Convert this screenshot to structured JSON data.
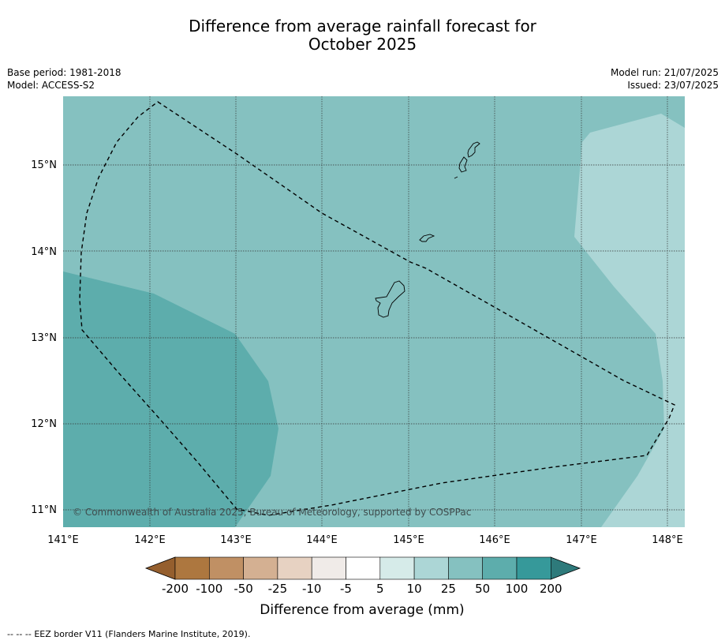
{
  "title": {
    "line1": "Difference from average rainfall forecast for",
    "line2": "October 2025"
  },
  "meta": {
    "base_period": "Base period: 1981-2018",
    "model": "Model: ACCESS-S2",
    "model_run": "Model run: 21/07/2025",
    "issued": "Issued: 23/07/2025"
  },
  "map": {
    "lon_labels": [
      "141°E",
      "142°E",
      "143°E",
      "144°E",
      "145°E",
      "146°E",
      "147°E",
      "148°E"
    ],
    "lat_labels": [
      "15°N",
      "14°N",
      "13°N",
      "12°N",
      "11°N"
    ],
    "copyright": "© Commonwealth of Australia 2025, Bureau of Meteorology, supported by COSPPac",
    "colors": {
      "class_25_50": "#85c1c0",
      "class_50_100": "#5dadac",
      "class_10_25": "#acd6d6",
      "coastline": "#000000",
      "eez_border": "#000000"
    }
  },
  "colorbar": {
    "labels": [
      "-200",
      "-100",
      "-50",
      "-25",
      "-10",
      "-5",
      "5",
      "10",
      "25",
      "50",
      "100",
      "200"
    ],
    "title": "Difference from average (mm)",
    "colors": [
      "#955f2e",
      "#ad773f",
      "#c09064",
      "#d4b092",
      "#e7d2c2",
      "#f0ebe8",
      "#ffffff",
      "#d6ebe9",
      "#acd6d6",
      "#85c1c0",
      "#5dadac",
      "#36999a",
      "#2e7a7b"
    ]
  },
  "footer": {
    "legend_symbol": "-- -- --",
    "legend_text": "EEZ border V11 (Flanders Marine Institute, 2019)."
  }
}
